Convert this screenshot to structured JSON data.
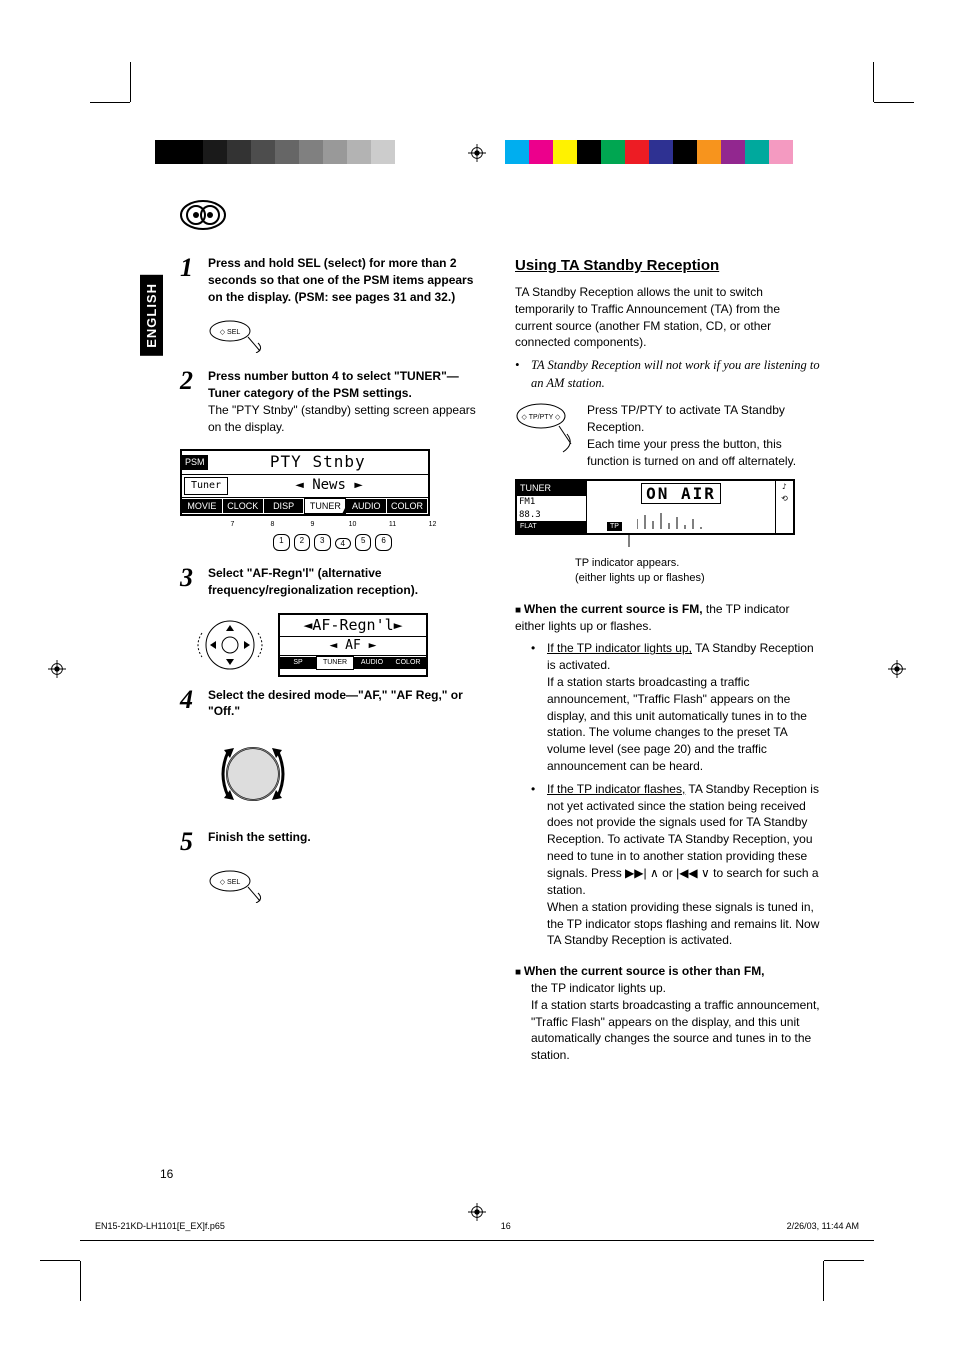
{
  "language_tab": "ENGLISH",
  "page_number": "16",
  "colorbar_left": [
    "#000000",
    "#000000",
    "#1a1a1a",
    "#333333",
    "#4d4d4d",
    "#666666",
    "#808080",
    "#999999",
    "#b3b3b3",
    "#cccccc",
    "#ffffff",
    "#ffffff"
  ],
  "colorbar_right": [
    "#00aeef",
    "#ec008c",
    "#fff200",
    "#000000",
    "#00a651",
    "#ed1c24",
    "#2e3192",
    "#000000",
    "#f7941d",
    "#92278f",
    "#00a99d",
    "#f49ac1"
  ],
  "steps": [
    {
      "num": "1",
      "bold": "Press and hold SEL (select) for more than 2 seconds so that one of the PSM items appears on the display. (PSM: see pages 31 and 32.)"
    },
    {
      "num": "2",
      "bold": "Press number button 4 to select \"TUNER\"—Tuner category of the PSM settings.",
      "plain": "The \"PTY Stnby\" (standby) setting screen appears on the display."
    },
    {
      "num": "3",
      "bold": "Select \"AF-Regn'l\" (alternative frequency/regionalization reception)."
    },
    {
      "num": "4",
      "bold": "Select the desired mode—\"AF,\" \"AF Reg,\" or \"Off.\""
    },
    {
      "num": "5",
      "bold": "Finish the setting."
    }
  ],
  "lcd1": {
    "top_left": "PSM",
    "top_main": "PTY  Stnby",
    "mid_left": "Tuner",
    "mid_main": "News",
    "tabs": [
      "MOVIE",
      "CLOCK",
      "DISP",
      "TUNER",
      "AUDIO",
      "COLOR"
    ],
    "btn_top": [
      "7",
      "8",
      "9",
      "10",
      "11",
      "12"
    ],
    "btn_bot": [
      "1",
      "2",
      "3",
      "4",
      "5",
      "6"
    ]
  },
  "lcd2": {
    "main": "AF-Regn'l",
    "sub": "AF",
    "tabs": [
      "SP",
      "TUNER",
      "AUDIO",
      "COLOR"
    ]
  },
  "section_title": "Using TA Standby Reception",
  "intro": "TA Standby Reception allows the unit to switch temporarily to Traffic Announcement (TA) from the current source (another FM station, CD, or other connected components).",
  "note_italic": "TA Standby Reception will not work if you are listening to an AM station.",
  "press_text": "Press TP/PTY to activate TA Standby Reception.\nEach time your press the button, this function is turned on and off alternately.",
  "lcd3": {
    "left_top": "TUNER",
    "left_l1": "FM1",
    "left_l2": "88.3",
    "left_b": "FLAT",
    "main": "ON AIR",
    "tp": "TP"
  },
  "tp_caption": "TP indicator appears.\n(either lights up or flashes)",
  "fm_heading": "When the current source is FM,",
  "fm_tail": " the TP indicator either lights up or flashes.",
  "fm_b1_lead": "If the TP indicator lights up,",
  "fm_b1_tail": " TA Standby Reception is activated.",
  "fm_b1_body": "If a station starts broadcasting a traffic announcement, \"Traffic Flash\" appears on the display, and this unit automatically tunes in to the station. The volume changes to the preset TA volume level (see page 20) and the traffic announcement can be heard.",
  "fm_b2_lead": "If the TP indicator flashes,",
  "fm_b2_tail": " TA Standby Reception is not yet activated since the station being received does not provide the signals used for TA Standby Reception. To activate TA Standby Reception, you need to tune in to another station providing these signals. Press ",
  "fm_b2_tail2": " to search for such a station.",
  "fm_b2_body": "When a station providing these signals is tuned in, the TP indicator stops flashing and remains lit. Now TA Standby Reception is activated.",
  "other_heading": "When the current source is other than FM,",
  "other_l1": "the TP indicator lights up.",
  "other_body": "If a station starts broadcasting a traffic announcement, \"Traffic Flash\" appears on the display, and this unit automatically changes the source and tunes in to the station.",
  "or_word": " or ",
  "footer_file": "EN15-21KD-LH1101[E_EX]f.p65",
  "footer_page": "16",
  "footer_date": "2/26/03, 11:44 AM"
}
